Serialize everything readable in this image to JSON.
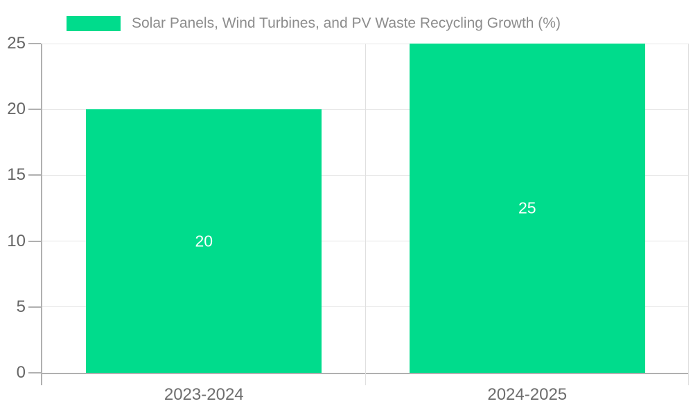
{
  "chart_data": {
    "type": "bar",
    "title": "",
    "legend": {
      "position": "top-left",
      "entries": [
        {
          "label": "Solar Panels, Wind Turbines, and PV Waste Recycling Growth (%)"
        }
      ]
    },
    "categories": [
      "2023-2024",
      "2024-2025"
    ],
    "series": [
      {
        "name": "Solar Panels, Wind Turbines, and PV Waste Recycling Growth (%)",
        "values": [
          20,
          25
        ]
      }
    ],
    "data_labels": [
      "20",
      "25"
    ],
    "xlabel": "",
    "ylabel": "",
    "ylim": [
      0,
      25
    ],
    "yticks": [
      0,
      5,
      10,
      15,
      20,
      25
    ],
    "grid": true,
    "colors": {
      "bar": "#00DC8C",
      "gridline": "#e6e6e6",
      "separator_line": "#e0e0e0",
      "axis": "#b0b0b0",
      "tick_mark": "#b0b0b0",
      "tick_label": "#666666",
      "category_label": "#6e6e6e",
      "legend_text": "#8c8c8c",
      "value_label": "#ffffff",
      "background": "#ffffff"
    }
  }
}
